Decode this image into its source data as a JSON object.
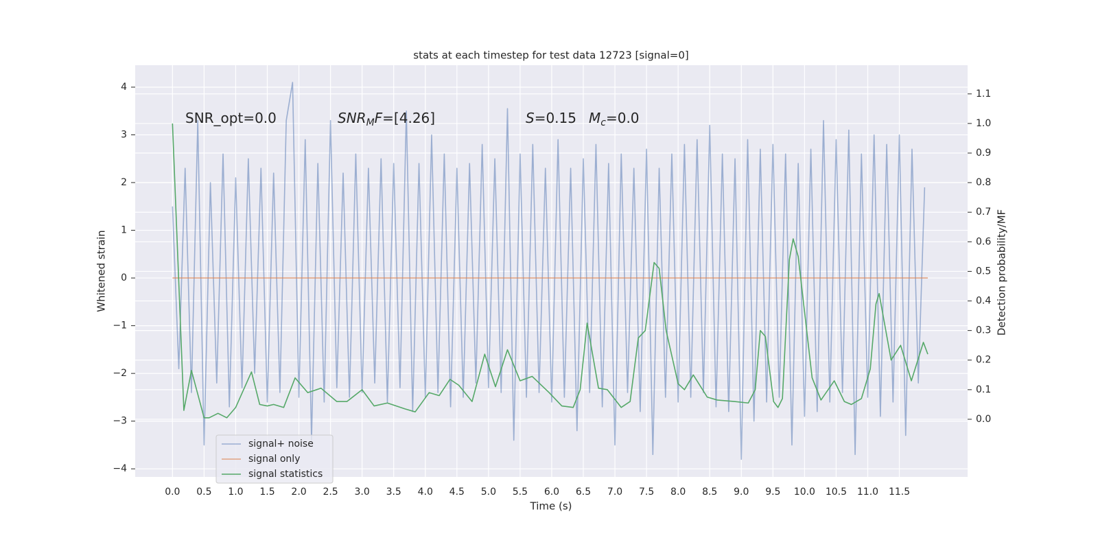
{
  "chart_data": {
    "type": "line",
    "title": "stats at each timestep for test data 12723 [signal=0]",
    "x_label": "Time (s)",
    "y_label": "Whitened strain",
    "y2_label": "Detection probability/MF",
    "grid": true,
    "legend": "lower left",
    "xlim": [
      -0.59,
      12.58
    ],
    "ylim": [
      -4.17,
      4.46
    ],
    "y2lim": [
      -0.195,
      1.197
    ],
    "xticks": [
      {
        "value": 0,
        "label": "0.0"
      },
      0.5,
      {
        "value": 1,
        "label": "1.0"
      },
      1.5,
      {
        "value": 2,
        "label": "2.0"
      },
      2.5,
      {
        "value": 3,
        "label": "3.0"
      },
      3.5,
      {
        "value": 4,
        "label": "4.0"
      },
      4.5,
      {
        "value": 5,
        "label": "5.0"
      },
      5.5,
      {
        "value": 6,
        "label": "6.0"
      },
      6.5,
      {
        "value": 7,
        "label": "7.0"
      },
      7.5,
      {
        "value": 8,
        "label": "8.0"
      },
      8.5,
      {
        "value": 9,
        "label": "9.0"
      },
      9.5,
      {
        "value": 10,
        "label": "10.0"
      },
      10.5,
      {
        "value": 11,
        "label": "11.0"
      },
      11.5
    ],
    "yticks": [
      {
        "value": -4,
        "label": "−4"
      },
      {
        "value": -3,
        "label": "−3"
      },
      {
        "value": -2,
        "label": "−2"
      },
      {
        "value": -1,
        "label": "−1"
      },
      0,
      1,
      2,
      3,
      4
    ],
    "y2ticks": [
      {
        "value": 0,
        "label": "0.0"
      },
      0.1,
      0.2,
      0.3,
      0.4,
      0.5,
      0.6,
      0.7,
      0.8,
      0.9,
      {
        "value": 1,
        "label": "1.0"
      },
      1.1
    ],
    "annotations": [
      {
        "parts": [
          {
            "text": "SNR_opt=0.0"
          }
        ]
      },
      {
        "parts": [
          {
            "text": "SNR",
            "style": "math"
          },
          {
            "text": "M",
            "style": "sub"
          },
          {
            "text": "F",
            "style": "math"
          },
          {
            "text": "=[4.26]"
          }
        ]
      },
      {
        "parts": [
          {
            "text": "S",
            "style": "math"
          },
          {
            "text": "=0.15"
          }
        ]
      },
      {
        "parts": [
          {
            "text": "M",
            "style": "math"
          },
          {
            "text": "c",
            "style": "sub"
          },
          {
            "text": "=0.0"
          }
        ]
      }
    ],
    "series": [
      {
        "name": "signal+ noise",
        "color": "#4c72b0",
        "opacity": 0.5,
        "x": [
          0.0,
          0.1,
          0.2,
          0.3,
          0.4,
          0.5,
          0.6,
          0.7,
          0.8,
          0.9,
          1.0,
          1.1,
          1.2,
          1.3,
          1.4,
          1.5,
          1.6,
          1.7,
          1.8,
          1.9,
          2.0,
          2.1,
          2.2,
          2.3,
          2.4,
          2.5,
          2.6,
          2.7,
          2.8,
          2.9,
          3.0,
          3.1,
          3.2,
          3.3,
          3.4,
          3.5,
          3.6,
          3.7,
          3.8,
          3.9,
          4.0,
          4.1,
          4.2,
          4.3,
          4.4,
          4.5,
          4.6,
          4.7,
          4.8,
          4.9,
          5.0,
          5.1,
          5.2,
          5.3,
          5.4,
          5.5,
          5.6,
          5.7,
          5.8,
          5.9,
          6.0,
          6.1,
          6.2,
          6.3,
          6.4,
          6.5,
          6.6,
          6.7,
          6.8,
          6.9,
          7.0,
          7.1,
          7.2,
          7.3,
          7.4,
          7.5,
          7.6,
          7.7,
          7.8,
          7.9,
          8.0,
          8.1,
          8.2,
          8.3,
          8.4,
          8.5,
          8.6,
          8.7,
          8.8,
          8.9,
          9.0,
          9.1,
          9.2,
          9.3,
          9.4,
          9.5,
          9.6,
          9.7,
          9.8,
          9.9,
          10.0,
          10.1,
          10.2,
          10.3,
          10.4,
          10.5,
          10.6,
          10.7,
          10.8,
          10.9,
          11.0,
          11.1,
          11.2,
          11.3,
          11.4,
          11.5,
          11.6,
          11.7,
          11.8,
          11.9
        ],
        "values": [
          1.5,
          -1.9,
          2.3,
          -2.4,
          3.3,
          -3.5,
          2.0,
          -2.2,
          2.6,
          -2.7,
          2.1,
          -2.3,
          2.5,
          -2.0,
          2.3,
          -2.6,
          2.2,
          -2.4,
          3.3,
          4.1,
          -2.5,
          2.9,
          -3.4,
          2.4,
          -2.6,
          3.3,
          -2.3,
          2.2,
          -2.5,
          2.6,
          -2.4,
          2.3,
          -2.2,
          2.5,
          -2.6,
          2.4,
          -2.3,
          3.5,
          -2.8,
          2.4,
          -2.5,
          3.0,
          -2.4,
          2.6,
          -2.7,
          2.3,
          -2.5,
          2.4,
          -2.2,
          2.8,
          -2.3,
          2.5,
          -2.4,
          3.55,
          -3.4,
          2.6,
          -2.5,
          2.8,
          -2.4,
          2.3,
          -2.6,
          2.9,
          -2.5,
          2.3,
          -3.2,
          2.5,
          -2.4,
          2.8,
          -2.7,
          2.4,
          -3.5,
          2.6,
          -2.4,
          2.3,
          -2.8,
          2.7,
          -3.7,
          2.3,
          -2.5,
          2.6,
          -2.6,
          2.8,
          -2.5,
          2.9,
          -2.4,
          3.2,
          -2.7,
          2.6,
          -2.8,
          2.5,
          -3.8,
          2.9,
          -3.0,
          2.7,
          -2.6,
          2.8,
          -2.5,
          2.6,
          -3.5,
          2.4,
          -2.9,
          2.7,
          -2.8,
          3.3,
          -2.6,
          2.9,
          -2.4,
          3.1,
          -3.7,
          2.6,
          -2.5,
          3.0,
          -2.9,
          2.8,
          -2.6,
          3.0,
          -3.3,
          2.7,
          -2.2,
          1.9
        ]
      },
      {
        "name": "signal only",
        "color": "#dd8452",
        "opacity": 0.7,
        "x": [
          0.0,
          11.95
        ],
        "values": [
          0,
          0
        ]
      },
      {
        "name": "signal statistics",
        "color": "#55a868",
        "axis": "y2",
        "x": [
          0.0,
          0.18,
          0.3,
          0.5,
          0.58,
          0.72,
          0.86,
          1.0,
          1.25,
          1.38,
          1.5,
          1.6,
          1.76,
          1.94,
          2.14,
          2.35,
          2.6,
          2.76,
          3.0,
          3.19,
          3.4,
          3.68,
          3.84,
          4.06,
          4.22,
          4.39,
          4.53,
          4.74,
          4.94,
          5.11,
          5.3,
          5.5,
          5.69,
          5.96,
          6.16,
          6.34,
          6.45,
          6.56,
          6.74,
          6.88,
          7.1,
          7.24,
          7.37,
          7.48,
          7.62,
          7.7,
          7.81,
          8.0,
          8.1,
          8.24,
          8.46,
          8.62,
          8.89,
          9.11,
          9.22,
          9.3,
          9.38,
          9.51,
          9.58,
          9.65,
          9.76,
          9.82,
          9.9,
          10.12,
          10.26,
          10.47,
          10.63,
          10.74,
          10.9,
          11.04,
          11.13,
          11.18,
          11.37,
          11.52,
          11.69,
          11.88,
          11.95
        ],
        "values": [
          1.0,
          0.03,
          0.165,
          0.005,
          0.005,
          0.02,
          0.005,
          0.04,
          0.16,
          0.05,
          0.045,
          0.05,
          0.04,
          0.14,
          0.09,
          0.105,
          0.06,
          0.06,
          0.1,
          0.045,
          0.055,
          0.035,
          0.025,
          0.09,
          0.08,
          0.135,
          0.115,
          0.06,
          0.22,
          0.11,
          0.235,
          0.13,
          0.145,
          0.09,
          0.045,
          0.04,
          0.1,
          0.325,
          0.105,
          0.1,
          0.04,
          0.06,
          0.275,
          0.3,
          0.53,
          0.51,
          0.3,
          0.12,
          0.1,
          0.15,
          0.075,
          0.065,
          0.06,
          0.055,
          0.1,
          0.3,
          0.28,
          0.06,
          0.04,
          0.07,
          0.54,
          0.61,
          0.55,
          0.14,
          0.065,
          0.13,
          0.06,
          0.05,
          0.07,
          0.17,
          0.39,
          0.425,
          0.2,
          0.25,
          0.13,
          0.26,
          0.22
        ]
      }
    ]
  }
}
